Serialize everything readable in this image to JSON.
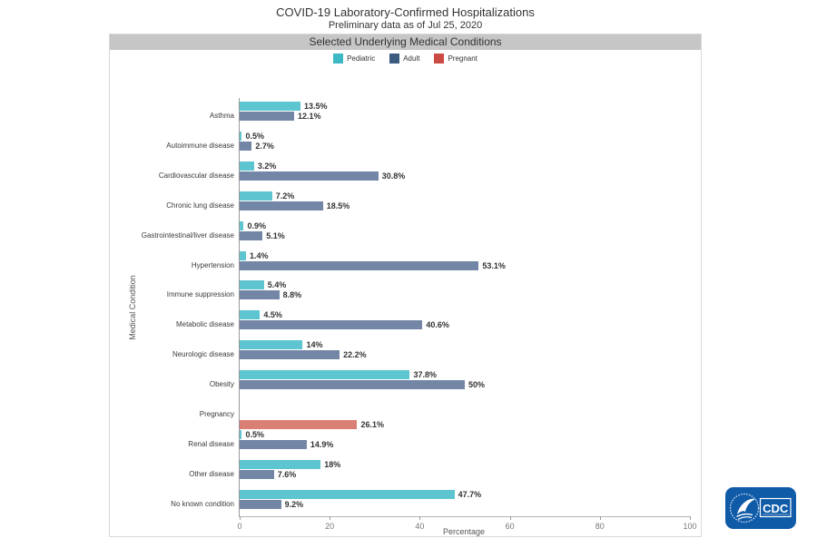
{
  "header": {
    "title": "COVID-19 Laboratory-Confirmed Hospitalizations",
    "subtitle": "Preliminary data as of Jul 25, 2020"
  },
  "panel": {
    "title": "Selected Underlying Medical Conditions"
  },
  "axes": {
    "xlabel": "Percentage",
    "ylabel": "Medical Condition"
  },
  "colors": {
    "panel_header_bg": "#c6c6c6",
    "pediatric_legend": "#3db8c5",
    "adult_legend": "#3e5c80",
    "pregnant_legend": "#cb4a42",
    "pediatric_bar": "#5dc5cf",
    "adult_bar": "#7386a5",
    "pregnant_bar": "#d97f74",
    "logo_blue": "#0f5ba8"
  },
  "logo": {
    "label": "CDC"
  },
  "chart_data": {
    "type": "bar",
    "orientation": "horizontal",
    "title": "Selected Underlying Medical Conditions",
    "xlabel": "Percentage",
    "ylabel": "Medical Condition",
    "xlim": [
      0,
      100
    ],
    "x_ticks": [
      0,
      20,
      40,
      60,
      80,
      100
    ],
    "grid": false,
    "legend_position": "top-center",
    "categories": [
      "Asthma",
      "Autoimmune disease",
      "Cardiovascular disease",
      "Chronic lung disease",
      "Gastrointestinal/liver disease",
      "Hypertension",
      "Immune suppression",
      "Metabolic disease",
      "Neurologic disease",
      "Obesity",
      "Pregnancy",
      "Renal disease",
      "Other disease",
      "No known condition"
    ],
    "series": [
      {
        "name": "Pediatric",
        "legend_color": "#3db8c5",
        "bar_color": "#5dc5cf",
        "values": [
          13.5,
          0.5,
          3.2,
          7.2,
          0.9,
          1.4,
          5.4,
          4.5,
          14,
          37.8,
          null,
          0.5,
          18,
          47.7
        ],
        "labels": [
          "13.5%",
          "0.5%",
          "3.2%",
          "7.2%",
          "0.9%",
          "1.4%",
          "5.4%",
          "4.5%",
          "14%",
          "37.8%",
          null,
          "0.5%",
          "18%",
          "47.7%"
        ]
      },
      {
        "name": "Adult",
        "legend_color": "#3e5c80",
        "bar_color": "#7386a5",
        "values": [
          12.1,
          2.7,
          30.8,
          18.5,
          5.1,
          53.1,
          8.8,
          40.6,
          22.2,
          50,
          null,
          14.9,
          7.6,
          9.2
        ],
        "labels": [
          "12.1%",
          "2.7%",
          "30.8%",
          "18.5%",
          "5.1%",
          "53.1%",
          "8.8%",
          "40.6%",
          "22.2%",
          "50%",
          null,
          "14.9%",
          "7.6%",
          "9.2%"
        ]
      },
      {
        "name": "Pregnant",
        "legend_color": "#cb4a42",
        "bar_color": "#d97f74",
        "values": [
          null,
          null,
          null,
          null,
          null,
          null,
          null,
          null,
          null,
          null,
          26.1,
          null,
          null,
          null
        ],
        "labels": [
          null,
          null,
          null,
          null,
          null,
          null,
          null,
          null,
          null,
          null,
          "26.1%",
          null,
          null,
          null
        ]
      }
    ]
  }
}
